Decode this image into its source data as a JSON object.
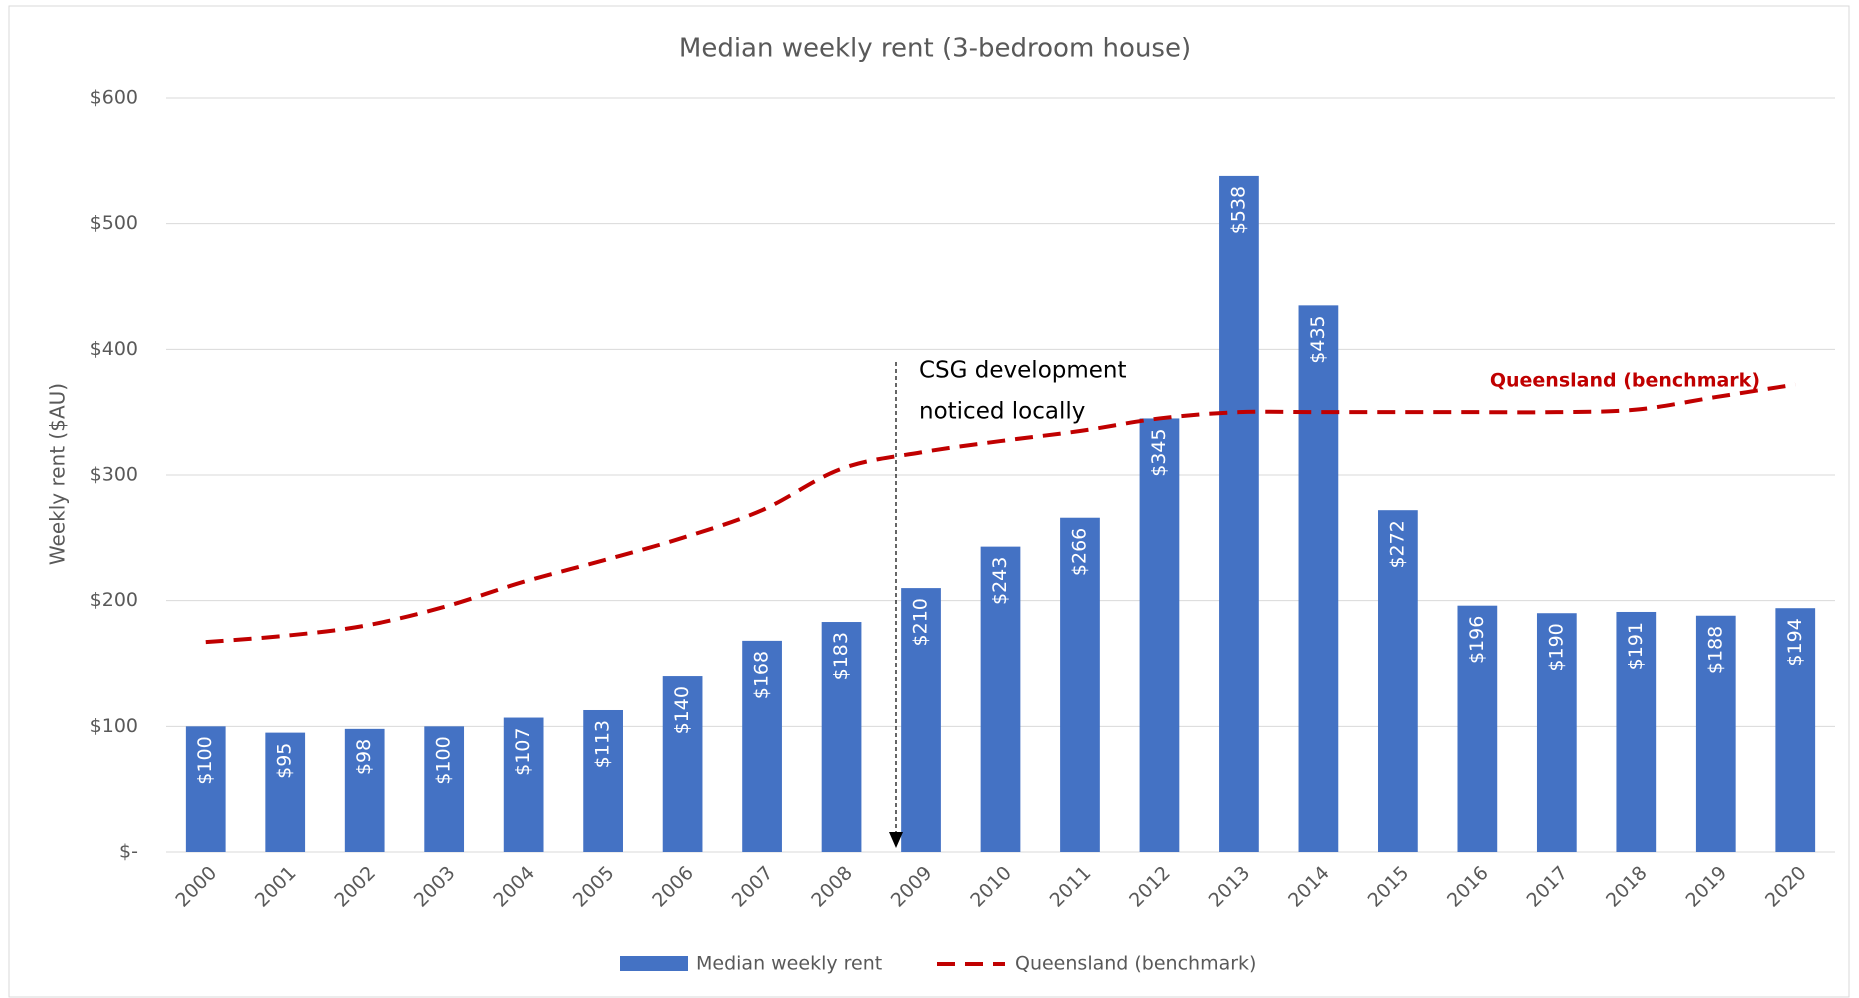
{
  "chart_data": {
    "type": "bar",
    "title": "Median weekly rent (3-bedroom house)",
    "y_label": "Weekly rent ($AU)",
    "categories": [
      "2000",
      "2001",
      "2002",
      "2003",
      "2004",
      "2005",
      "2006",
      "2007",
      "2008",
      "2009",
      "2010",
      "2011",
      "2012",
      "2013",
      "2014",
      "2015",
      "2016",
      "2017",
      "2018",
      "2019",
      "2020"
    ],
    "series": [
      {
        "name": "Median weekly rent",
        "type": "bar",
        "color": "#4472c4",
        "values": [
          100,
          95,
          98,
          100,
          107,
          113,
          140,
          168,
          183,
          210,
          243,
          266,
          345,
          538,
          435,
          272,
          196,
          190,
          191,
          188,
          194
        ],
        "value_labels": [
          "$100",
          "$95",
          "$98",
          "$100",
          "$107",
          "$113",
          "$140",
          "$168",
          "$183",
          "$210",
          "$243",
          "$266",
          "$345",
          "$538",
          "$435",
          "$272",
          "$196",
          "$190",
          "$191",
          "$188",
          "$194"
        ]
      },
      {
        "name": "Queensland (benchmark)",
        "type": "line",
        "color": "#c00000",
        "dashed": true,
        "values": [
          167,
          172,
          180,
          195,
          215,
          232,
          250,
          272,
          305,
          318,
          327,
          335,
          345,
          350,
          350,
          350,
          350,
          350,
          352,
          362,
          372
        ]
      }
    ],
    "annotations": [
      {
        "text": [
          "CSG development",
          "noticed locally"
        ]
      }
    ],
    "ylim": [
      0,
      600
    ],
    "yticks": [
      {
        "value": 0,
        "label": "$-"
      },
      {
        "value": 100,
        "label": "$100"
      },
      {
        "value": 200,
        "label": "$200"
      },
      {
        "value": 300,
        "label": "$300"
      },
      {
        "value": 400,
        "label": "$400"
      },
      {
        "value": 500,
        "label": "$500"
      },
      {
        "value": 600,
        "label": "$600"
      }
    ],
    "grid": true,
    "legend": "bottom"
  }
}
